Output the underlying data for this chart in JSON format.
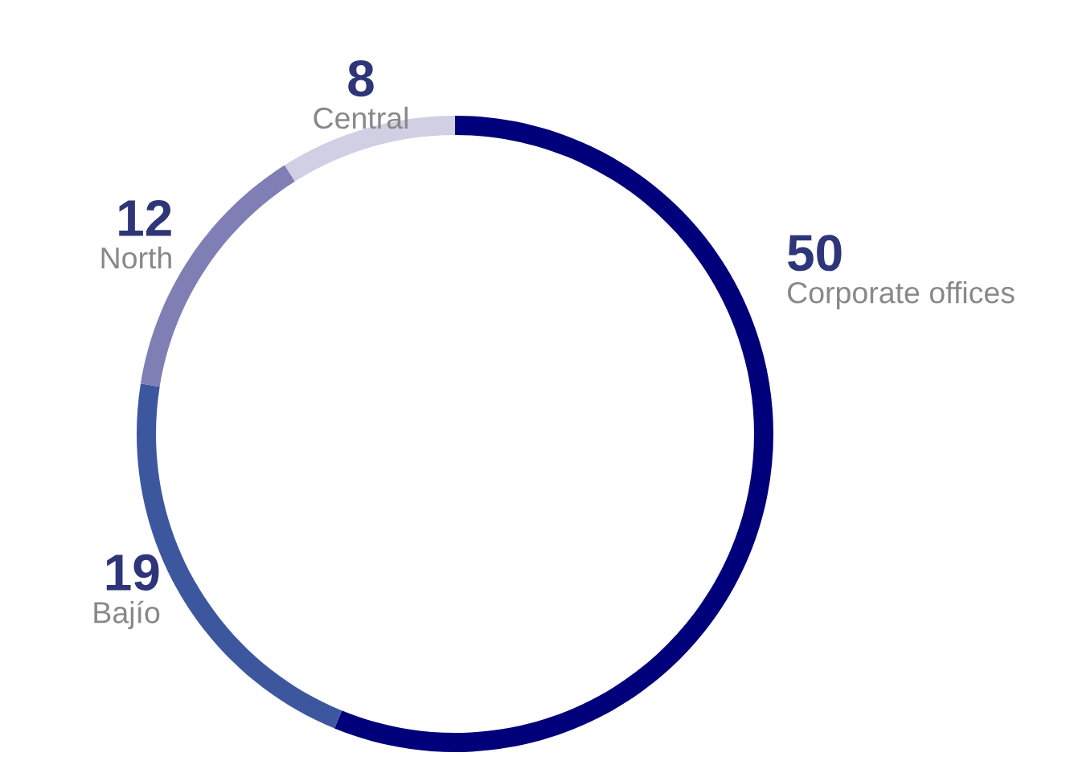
{
  "chart_data": {
    "type": "donut",
    "categories": [
      "Corporate offices",
      "Bajío",
      "North",
      "Central"
    ],
    "values": [
      50,
      19,
      12,
      8
    ],
    "colors": [
      "#00007a",
      "#3d579f",
      "#7f7fb5",
      "#d0cfe3"
    ],
    "data_labels": true,
    "legend": false
  }
}
